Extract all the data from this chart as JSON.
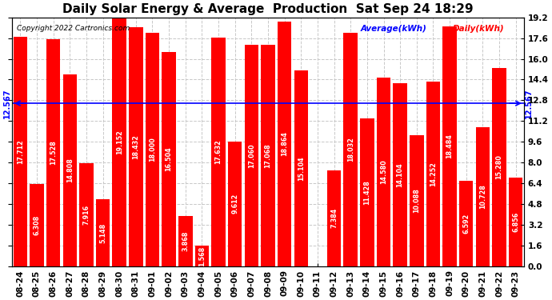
{
  "title": "Daily Solar Energy & Average  Production  Sat Sep 24 18:29",
  "copyright": "Copyright 2022 Cartronics.com",
  "average_label": "Average(kWh)",
  "daily_label": "Daily(kWh)",
  "average_value": 12.567,
  "categories": [
    "08-24",
    "08-25",
    "08-26",
    "08-27",
    "08-28",
    "08-29",
    "08-30",
    "08-31",
    "09-01",
    "09-02",
    "09-03",
    "09-04",
    "09-05",
    "09-06",
    "09-07",
    "09-08",
    "09-09",
    "09-10",
    "09-11",
    "09-12",
    "09-13",
    "09-14",
    "09-15",
    "09-16",
    "09-17",
    "09-18",
    "09-19",
    "09-20",
    "09-21",
    "09-22",
    "09-23"
  ],
  "values": [
    17.712,
    6.308,
    17.528,
    14.808,
    7.916,
    5.148,
    19.152,
    18.432,
    18.0,
    16.504,
    3.868,
    1.568,
    17.632,
    9.612,
    17.06,
    17.068,
    18.864,
    15.104,
    0.0,
    7.384,
    18.032,
    11.428,
    14.58,
    14.104,
    10.088,
    14.252,
    18.484,
    6.592,
    10.728,
    15.28,
    6.856
  ],
  "bar_color": "#ff0000",
  "avg_line_color": "#0000ff",
  "background_color": "#ffffff",
  "grid_color": "#c8c8c8",
  "ylim": [
    0,
    19.2
  ],
  "yticks": [
    0.0,
    1.6,
    3.2,
    4.8,
    6.4,
    8.0,
    9.6,
    11.2,
    12.8,
    14.4,
    16.0,
    17.6,
    19.2
  ],
  "title_fontsize": 11,
  "tick_fontsize": 7.5,
  "bar_label_fontsize": 5.8,
  "avg_fontsize": 7,
  "legend_avg_color": "#0000ff",
  "legend_daily_color": "#ff0000"
}
